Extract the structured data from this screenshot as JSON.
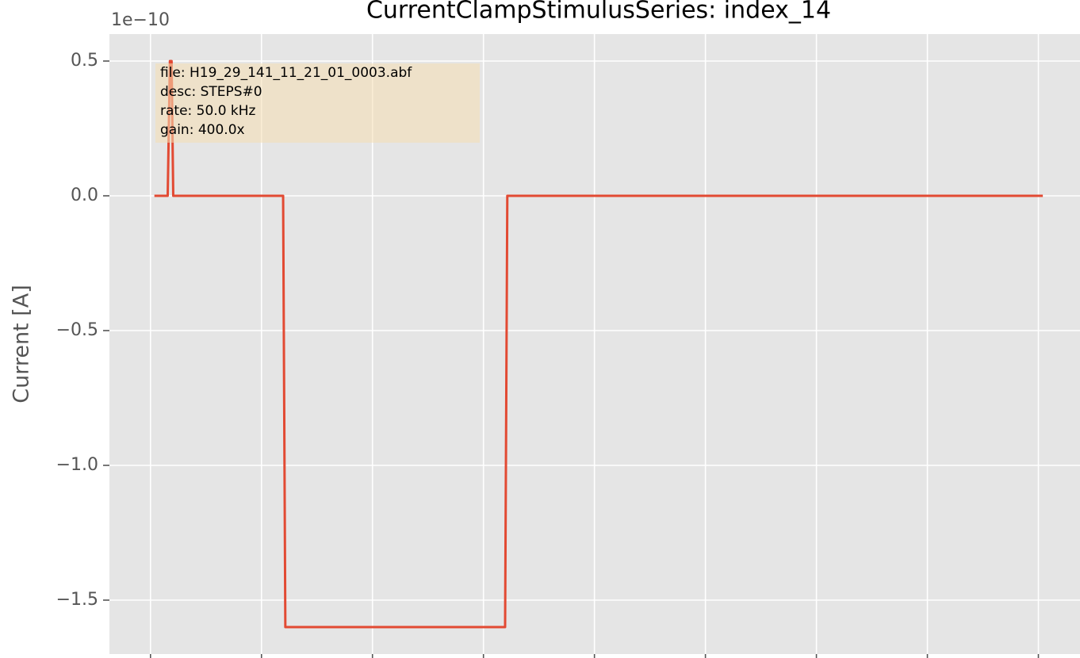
{
  "chart_data": {
    "type": "line",
    "title": "CurrentClampStimulusSeries: index_14",
    "y_label": "Current [A]",
    "y_offset_label": "1e−10",
    "annotation": [
      "file: H19_29_141_11_21_01_0003.abf",
      "desc: STEPS#0",
      "rate: 50.0 kHz",
      "gain: 400.0x"
    ],
    "x": [
      0.007,
      0.031,
      0.035,
      0.038,
      0.041,
      0.239,
      0.243,
      0.639,
      0.643,
      1.608
    ],
    "series": [
      {
        "color": "#E24A33",
        "values": [
          0,
          0,
          0.5,
          0.5,
          0,
          0,
          -1.6,
          -1.6,
          0,
          0
        ]
      }
    ],
    "xlim": [
      -0.074,
      1.675
    ],
    "xticks": [
      0,
      0.2,
      0.4,
      0.6,
      0.8,
      1.0,
      1.2,
      1.4,
      1.6
    ],
    "ylim": [
      -1.7,
      0.6
    ],
    "yticks": [
      0.5,
      {
        "value": 0,
        "label": "0.0"
      },
      {
        "value": -0.5,
        "label": "−0.5"
      },
      {
        "value": -1,
        "label": "−1.0"
      },
      {
        "value": -1.5,
        "label": "−1.5"
      }
    ],
    "grid": true
  }
}
